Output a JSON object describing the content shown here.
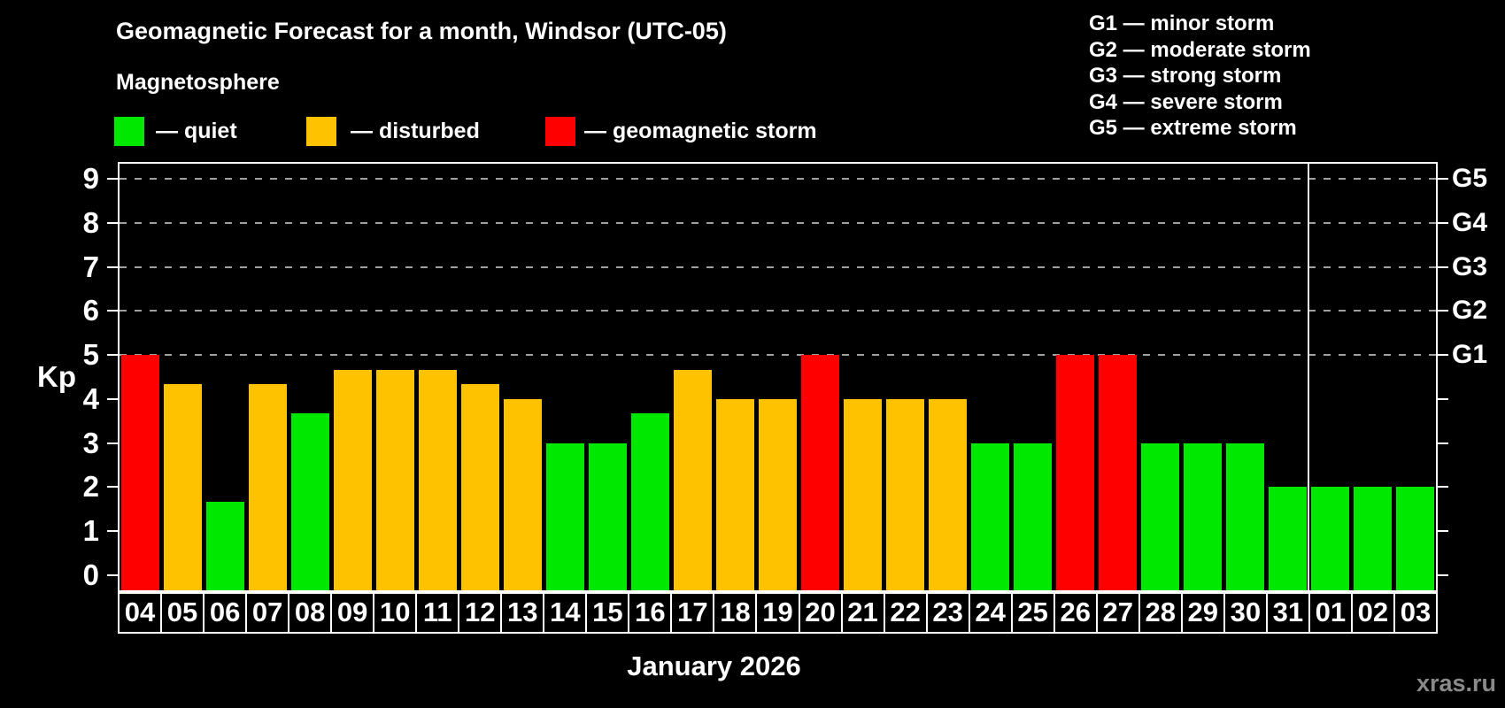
{
  "chart_data": {
    "type": "bar",
    "title": "Geomagnetic Forecast for a month, Windsor (UTC-05)",
    "subtitle": "Magnetosphere",
    "xlabel": "January 2026",
    "ylabel": "Kp",
    "ylim": [
      -0.35,
      9.35
    ],
    "yticks": [
      0,
      1,
      2,
      3,
      4,
      5,
      6,
      7,
      8,
      9
    ],
    "grid_kp_levels": [
      5,
      6,
      7,
      8,
      9
    ],
    "grid_on": true,
    "legend_position": "top-left",
    "right_axis_labels": [
      {
        "kp": 5,
        "label": "G1"
      },
      {
        "kp": 6,
        "label": "G2"
      },
      {
        "kp": 7,
        "label": "G3"
      },
      {
        "kp": 8,
        "label": "G4"
      },
      {
        "kp": 9,
        "label": "G5"
      }
    ],
    "categories": [
      "04",
      "05",
      "06",
      "07",
      "08",
      "09",
      "10",
      "11",
      "12",
      "13",
      "14",
      "15",
      "16",
      "17",
      "18",
      "19",
      "20",
      "21",
      "22",
      "23",
      "24",
      "25",
      "26",
      "27",
      "28",
      "29",
      "30",
      "31",
      "01",
      "02",
      "03"
    ],
    "values": [
      5,
      4.33,
      1.67,
      4.33,
      3.67,
      4.67,
      4.67,
      4.67,
      4.33,
      4,
      3,
      3,
      3.67,
      4.67,
      4,
      4,
      5,
      4,
      4,
      4,
      3,
      3,
      5,
      5,
      3,
      3,
      3,
      2,
      2,
      2,
      2
    ],
    "statuses": [
      "storm",
      "disturbed",
      "quiet",
      "disturbed",
      "quiet",
      "disturbed",
      "disturbed",
      "disturbed",
      "disturbed",
      "disturbed",
      "quiet",
      "quiet",
      "quiet",
      "disturbed",
      "disturbed",
      "disturbed",
      "storm",
      "disturbed",
      "disturbed",
      "disturbed",
      "quiet",
      "quiet",
      "storm",
      "storm",
      "quiet",
      "quiet",
      "quiet",
      "quiet",
      "quiet",
      "quiet",
      "quiet"
    ],
    "month_separator_after": "31",
    "colors": {
      "quiet": "#00e800",
      "disturbed": "#ffc200",
      "storm": "#ff0000",
      "grid": "#a0a0a0",
      "axis": "#ffffff",
      "background": "#000000"
    }
  },
  "legend": {
    "items": [
      {
        "status": "quiet",
        "label": "— quiet",
        "color": "#00e800"
      },
      {
        "status": "disturbed",
        "label": "— disturbed",
        "color": "#ffc200"
      },
      {
        "status": "storm",
        "label": "— geomagnetic storm",
        "color": "#ff0000"
      }
    ]
  },
  "g_scale_legend": {
    "items": [
      "G1 — minor storm",
      "G2 — moderate storm",
      "G3 — strong storm",
      "G4 — severe storm",
      "G5 — extreme storm"
    ]
  },
  "footer": {
    "watermark": "xras.ru"
  }
}
